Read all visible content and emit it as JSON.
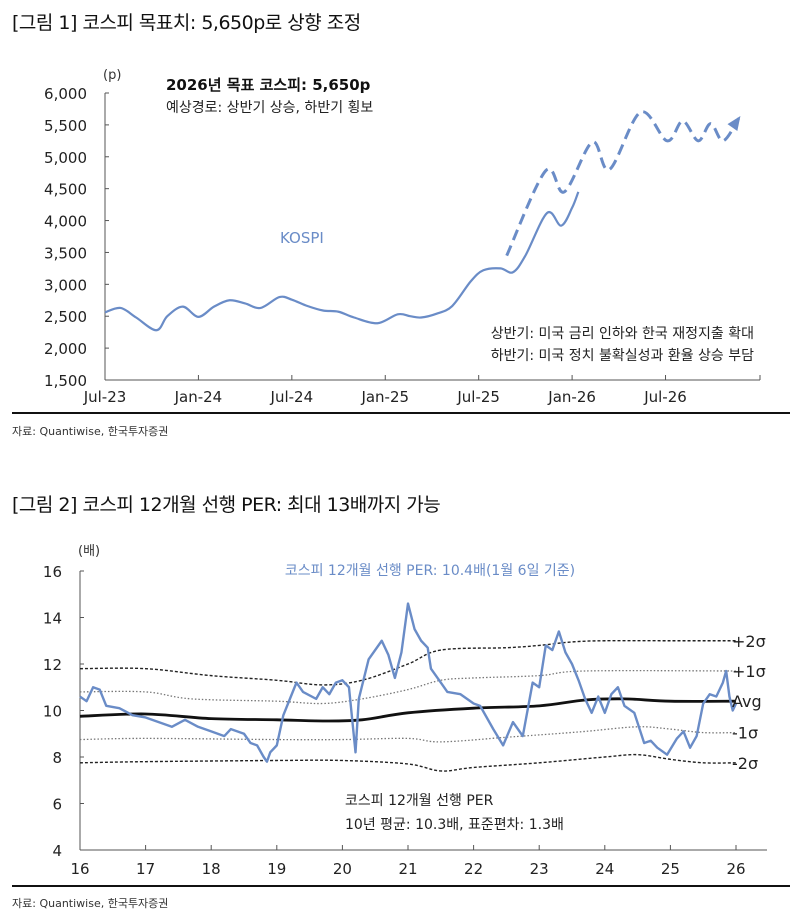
{
  "figure1": {
    "title": "[그림 1] 코스피 목표치: 5,650p로 상향 조정",
    "source": "자료: Quantiwise, 한국투자증권"
  },
  "figure2": {
    "title": "[그림 2] 코스피 12개월 선행 PER: 최대 13배까지 가능",
    "source": "자료: Quantiwise, 한국투자증권"
  },
  "chart_data": [
    {
      "type": "line",
      "unit_label": "(p)",
      "ylim": [
        1500,
        6000
      ],
      "yticks": [
        "1,500",
        "2,000",
        "2,500",
        "3,000",
        "3,500",
        "4,000",
        "4,500",
        "5,000",
        "5,500",
        "6,000"
      ],
      "ytick_values": [
        1500,
        2000,
        2500,
        3000,
        3500,
        4000,
        4500,
        5000,
        5500,
        6000
      ],
      "xticks": [
        "Jul-23",
        "Jan-24",
        "Jul-24",
        "Jan-25",
        "Jul-25",
        "Jan-26",
        "Jul-26"
      ],
      "xtick_months": [
        0,
        6,
        12,
        18,
        24,
        30,
        36
      ],
      "x_unit": "months since Jul-23",
      "xlim": [
        0,
        42
      ],
      "annotations": {
        "target": "2026년 목표 코스피: 5,650p",
        "path": "예상경로: 상반기 상승, 하반기 횡보",
        "h1": "상반기: 미국 금리 인하와 한국 재정지출 확대",
        "h2": "하반기: 미국 정치 불확실성과 환율 상승 부담"
      },
      "color": "#6a8cc7",
      "series": [
        {
          "name": "KOSPI",
          "style": "solid",
          "x": [
            0,
            1,
            2,
            3.3,
            4,
            5,
            6,
            7,
            8,
            9,
            10,
            11.2,
            12,
            13,
            14,
            15,
            16,
            17.5,
            18.8,
            19.6,
            20.3,
            21.3,
            22.3,
            23.5,
            24.3,
            25.4,
            26.2,
            27,
            28.4,
            29.3,
            30,
            30.4
          ],
          "y": [
            2560,
            2630,
            2480,
            2280,
            2500,
            2650,
            2490,
            2650,
            2750,
            2700,
            2630,
            2800,
            2760,
            2660,
            2590,
            2570,
            2480,
            2390,
            2530,
            2500,
            2480,
            2540,
            2660,
            3050,
            3220,
            3250,
            3190,
            3450,
            4120,
            3920,
            4200,
            4450
          ]
        },
        {
          "name": "예상경로",
          "style": "dashed",
          "x": [
            25.8,
            28.3,
            29.5,
            31.3,
            32.4,
            34.4,
            36.1,
            37.1,
            38.1,
            38.9,
            39.7,
            40.7
          ],
          "y": [
            3450,
            4780,
            4450,
            5230,
            4800,
            5700,
            5250,
            5560,
            5250,
            5520,
            5250,
            5600
          ]
        }
      ]
    },
    {
      "type": "line",
      "unit_label": "(배)",
      "title": "코스피 12개월 선행 PER: 10.4배(1월 6일 기준)",
      "ylim": [
        4,
        16
      ],
      "yticks": [
        "4",
        "6",
        "8",
        "10",
        "12",
        "14",
        "16"
      ],
      "ytick_values": [
        4,
        6,
        8,
        10,
        12,
        14,
        16
      ],
      "xticks": [
        "16",
        "17",
        "18",
        "19",
        "20",
        "21",
        "22",
        "23",
        "24",
        "25",
        "26"
      ],
      "xtick_values": [
        16,
        17,
        18,
        19,
        20,
        21,
        22,
        23,
        24,
        25,
        26
      ],
      "xlim": [
        16,
        26.5
      ],
      "annotations": {
        "label": "코스피 12개월 선행 PER",
        "stats": "10년 평균: 10.3배, 표준편차: 1.3배"
      },
      "series": [
        {
          "name": "코스피 12개월 선행 PER",
          "style": "solid",
          "color": "#6a8cc7",
          "x": [
            16.0,
            16.1,
            16.2,
            16.3,
            16.4,
            16.6,
            16.8,
            17.0,
            17.2,
            17.4,
            17.6,
            17.8,
            18.0,
            18.2,
            18.3,
            18.5,
            18.6,
            18.7,
            18.8,
            18.85,
            18.9,
            19.0,
            19.1,
            19.2,
            19.3,
            19.4,
            19.6,
            19.7,
            19.8,
            19.9,
            20.0,
            20.1,
            20.2,
            20.25,
            20.4,
            20.6,
            20.7,
            20.8,
            20.9,
            21.0,
            21.1,
            21.2,
            21.3,
            21.35,
            21.5,
            21.6,
            21.8,
            22.0,
            22.1,
            22.3,
            22.45,
            22.6,
            22.75,
            22.9,
            23.0,
            23.1,
            23.2,
            23.3,
            23.4,
            23.5,
            23.6,
            23.7,
            23.8,
            23.9,
            24.0,
            24.1,
            24.2,
            24.3,
            24.45,
            24.6,
            24.7,
            24.8,
            24.95,
            25.1,
            25.2,
            25.3,
            25.4,
            25.5,
            25.6,
            25.7,
            25.8,
            25.85,
            25.9,
            25.95,
            26.0
          ],
          "y": [
            10.6,
            10.4,
            11.0,
            10.9,
            10.2,
            10.1,
            9.8,
            9.7,
            9.5,
            9.3,
            9.6,
            9.3,
            9.1,
            8.9,
            9.2,
            9.0,
            8.6,
            8.5,
            8.0,
            7.8,
            8.2,
            8.5,
            9.8,
            10.5,
            11.2,
            10.8,
            10.5,
            11.0,
            10.7,
            11.2,
            11.3,
            11.0,
            8.2,
            10.5,
            12.2,
            13.0,
            12.4,
            11.4,
            12.5,
            14.6,
            13.5,
            13.0,
            12.7,
            11.8,
            11.2,
            10.8,
            10.7,
            10.3,
            10.2,
            9.2,
            8.5,
            9.5,
            8.9,
            11.2,
            11.0,
            12.8,
            12.6,
            13.4,
            12.5,
            12.0,
            11.3,
            10.5,
            9.9,
            10.6,
            9.9,
            10.7,
            11.0,
            10.2,
            9.9,
            8.6,
            8.7,
            8.4,
            8.1,
            8.8,
            9.1,
            8.4,
            8.9,
            10.3,
            10.7,
            10.6,
            11.2,
            11.7,
            10.6,
            10.0,
            10.3
          ]
        },
        {
          "name": "+2σ",
          "style": "dashed-dark",
          "color": "#222222",
          "x": [
            16,
            17,
            18,
            19,
            19.7,
            20.3,
            21,
            21.5,
            22.5,
            23,
            23.5,
            24,
            25,
            26
          ],
          "y": [
            11.8,
            11.8,
            11.5,
            11.3,
            11.1,
            11.3,
            12.0,
            12.6,
            12.7,
            12.8,
            12.95,
            13.0,
            13.0,
            13.0
          ]
        },
        {
          "name": "+1σ",
          "style": "dotted",
          "color": "#777777",
          "x": [
            16,
            17,
            17.7,
            19,
            19.7,
            20.3,
            21,
            21.5,
            22,
            23,
            23.7,
            26
          ],
          "y": [
            10.8,
            10.8,
            10.5,
            10.4,
            10.3,
            10.5,
            10.9,
            11.3,
            11.4,
            11.5,
            11.7,
            11.7
          ]
        },
        {
          "name": "Avg",
          "style": "thick",
          "color": "#111111",
          "x": [
            16,
            17,
            18,
            19,
            19.7,
            20.3,
            21,
            22,
            23,
            23.7,
            24.3,
            25,
            26
          ],
          "y": [
            9.75,
            9.85,
            9.65,
            9.6,
            9.55,
            9.6,
            9.9,
            10.1,
            10.2,
            10.45,
            10.5,
            10.4,
            10.4
          ]
        },
        {
          "name": "-1σ",
          "style": "dotted",
          "color": "#777777",
          "x": [
            16,
            17,
            19,
            20,
            21,
            21.5,
            22.5,
            23,
            23.7,
            24.5,
            25,
            25.5,
            26
          ],
          "y": [
            8.75,
            8.8,
            8.75,
            8.75,
            8.8,
            8.65,
            8.85,
            8.95,
            9.1,
            9.3,
            9.2,
            9.05,
            9.05
          ]
        },
        {
          "name": "-2σ",
          "style": "dashed-dark",
          "color": "#222222",
          "x": [
            16,
            17,
            19,
            20,
            21,
            21.5,
            22,
            23,
            24,
            24.5,
            25,
            25.5,
            26
          ],
          "y": [
            7.75,
            7.8,
            7.85,
            7.85,
            7.7,
            7.4,
            7.55,
            7.75,
            8.0,
            8.1,
            7.9,
            7.75,
            7.75
          ]
        }
      ],
      "band_labels": [
        "+2σ",
        "+1σ",
        "Avg",
        "-1σ",
        "-2σ"
      ]
    }
  ]
}
